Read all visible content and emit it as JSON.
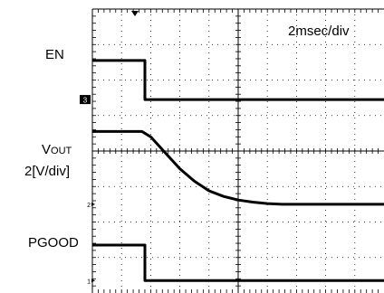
{
  "annotations": {
    "timebase": "2msec/div",
    "en_label": "EN",
    "vout_main": "V",
    "vout_sub": "OUT",
    "vout_scale": "2[V/div]",
    "pgood_label": "PGOOD"
  },
  "chart_data": {
    "type": "line",
    "time_per_div_ms": 2,
    "x_divisions": 10,
    "y_divisions": 8,
    "x_range_ms": [
      0,
      20
    ],
    "grid": "dotted",
    "series": [
      {
        "name": "EN",
        "color": "#000000",
        "points_ms_div": [
          [
            0,
            6.55
          ],
          [
            3.6,
            6.55
          ],
          [
            3.6,
            5.45
          ],
          [
            20,
            5.45
          ]
        ]
      },
      {
        "name": "VOUT",
        "color": "#000000",
        "scale": "2[V/div]",
        "points_ms_div": [
          [
            0,
            4.55
          ],
          [
            3.4,
            4.55
          ],
          [
            4.0,
            4.4
          ],
          [
            5.0,
            3.95
          ],
          [
            6.0,
            3.5
          ],
          [
            7.0,
            3.15
          ],
          [
            8.0,
            2.88
          ],
          [
            9.0,
            2.72
          ],
          [
            10.0,
            2.62
          ],
          [
            11.0,
            2.56
          ],
          [
            12.0,
            2.52
          ],
          [
            13.0,
            2.5
          ],
          [
            14.0,
            2.5
          ],
          [
            20,
            2.5
          ]
        ]
      },
      {
        "name": "PGOOD",
        "color": "#000000",
        "points_ms_div": [
          [
            0,
            1.35
          ],
          [
            3.6,
            1.35
          ],
          [
            3.6,
            0.35
          ],
          [
            20,
            0.35
          ]
        ]
      }
    ],
    "channel_markers": [
      {
        "label": "3",
        "level_div": 5.45,
        "style": "box"
      },
      {
        "label": "2",
        "level_div": 2.5,
        "style": "small"
      },
      {
        "label": "1",
        "level_div": 0.35,
        "style": "small"
      }
    ]
  }
}
